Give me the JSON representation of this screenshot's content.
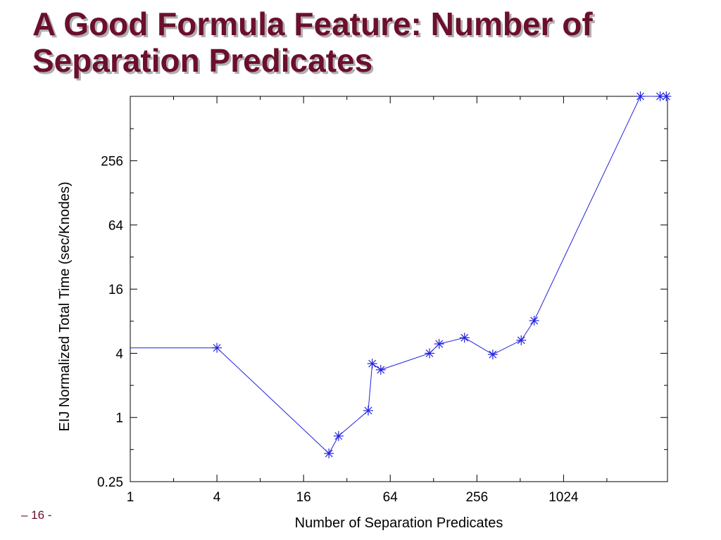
{
  "slide": {
    "title": "A Good Formula Feature: Number of Separation Predicates",
    "page_number": "– 16 -"
  },
  "chart_data": {
    "type": "line",
    "xlabel": "Number of Separation Predicates",
    "ylabel": "EIJ Normalized Total Time (sec/Knodes)",
    "x_scale": "log2",
    "y_scale": "log2",
    "xlim": [
      1,
      5400
    ],
    "ylim": [
      0.25,
      1030
    ],
    "x_ticks": [
      {
        "value": 1,
        "label": "1"
      },
      {
        "value": 4,
        "label": "4"
      },
      {
        "value": 16,
        "label": "16"
      },
      {
        "value": 64,
        "label": "64"
      },
      {
        "value": 256,
        "label": "256"
      },
      {
        "value": 1024,
        "label": "1024"
      }
    ],
    "y_ticks": [
      {
        "value": 0.25,
        "label": "0.25"
      },
      {
        "value": 1,
        "label": "1"
      },
      {
        "value": 4,
        "label": "4"
      },
      {
        "value": 16,
        "label": "16"
      },
      {
        "value": 64,
        "label": "64"
      },
      {
        "value": 256,
        "label": "256"
      }
    ],
    "line_color": "#2222dd",
    "marker": "asterisk",
    "grid": false,
    "series": [
      {
        "start_x": 1,
        "x": [
          4,
          24,
          28,
          45,
          48,
          55,
          120,
          140,
          210,
          330,
          520,
          640,
          3500,
          4800,
          5300
        ],
        "y": [
          4.5,
          0.46,
          0.67,
          1.16,
          3.2,
          2.8,
          4.0,
          4.9,
          5.6,
          3.9,
          5.3,
          8.1,
          1030,
          1030,
          1030
        ],
        "start_y": 4.5
      }
    ]
  }
}
